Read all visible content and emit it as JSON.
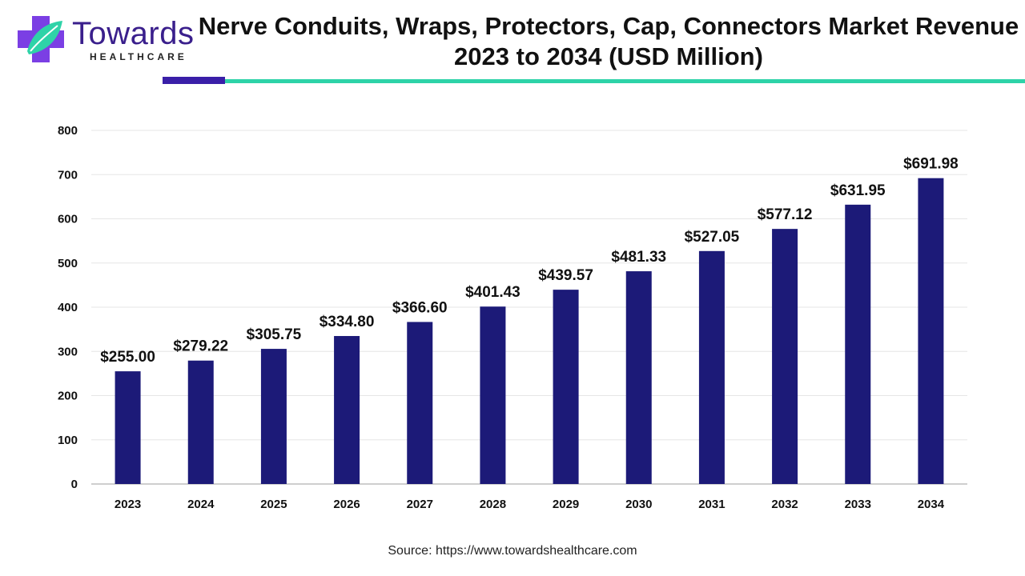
{
  "brand": {
    "name": "Towards",
    "tagline": "HEALTHCARE",
    "colors": {
      "primary": "#3a1f8c",
      "accent": "#2ed3a8",
      "accent2": "#7b3fe4"
    }
  },
  "chart_data": {
    "type": "bar",
    "title": "Nerve Conduits, Wraps, Protectors, Cap, Connectors Market Revenue 2023 to 2034 (USD Million)",
    "categories": [
      "2023",
      "2024",
      "2025",
      "2026",
      "2027",
      "2028",
      "2029",
      "2030",
      "2031",
      "2032",
      "2033",
      "2034"
    ],
    "values": [
      255.0,
      279.22,
      305.75,
      334.8,
      366.6,
      401.43,
      439.57,
      481.33,
      527.05,
      577.12,
      631.95,
      691.98
    ],
    "value_labels": [
      "$255.00",
      "$279.22",
      "$305.75",
      "$334.80",
      "$366.60",
      "$401.43",
      "$439.57",
      "$481.33",
      "$527.05",
      "$577.12",
      "$631.95",
      "$691.98"
    ],
    "yticks": [
      0,
      100,
      200,
      300,
      400,
      500,
      600,
      700,
      800
    ],
    "ylim": [
      0,
      800
    ],
    "grid": true,
    "bar_color": "#1c1a78",
    "xlabel": "",
    "ylabel": ""
  },
  "footer": {
    "source": "Source: https://www.towardshealthcare.com"
  }
}
